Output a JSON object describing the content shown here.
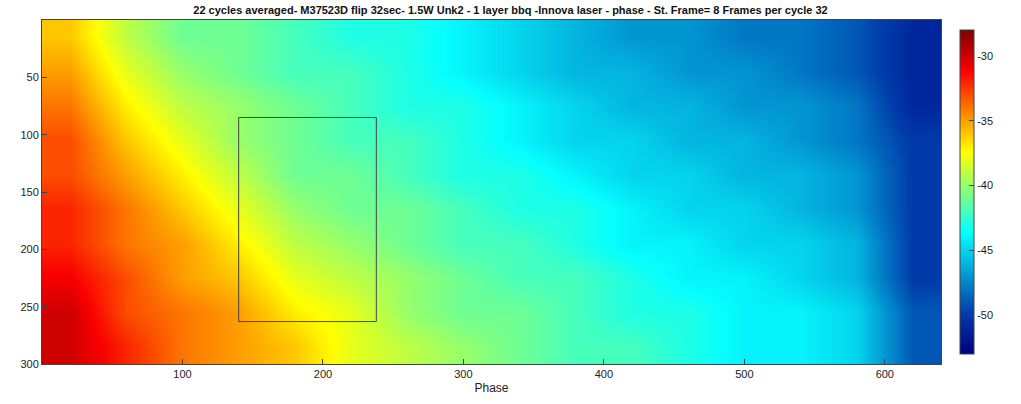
{
  "chart_data": {
    "type": "heatmap",
    "title": "22 cycles averaged- M37523D flip 32sec- 1.5W Unk2 - 1 layer bbq -Innova laser - phase - St. Frame= 8 Frames per cycle 32",
    "x_label": "Phase",
    "x": [
      20,
      60,
      100,
      140,
      180,
      220,
      260,
      300,
      340,
      380,
      420,
      460,
      500,
      540,
      580,
      620
    ],
    "y": [
      15,
      45,
      75,
      105,
      135,
      165,
      195,
      225,
      255,
      285
    ],
    "z": [
      [
        -36,
        -39,
        -41,
        -41,
        -42,
        -43,
        -43,
        -44,
        -45,
        -46,
        -47,
        -47,
        -48,
        -48,
        -49,
        -51
      ],
      [
        -35,
        -38,
        -40,
        -41,
        -42,
        -42,
        -43,
        -44,
        -45,
        -46,
        -46,
        -47,
        -47,
        -48,
        -49,
        -51
      ],
      [
        -34,
        -37,
        -39,
        -40,
        -41,
        -42,
        -43,
        -43,
        -44,
        -45,
        -46,
        -46,
        -47,
        -47,
        -48,
        -51
      ],
      [
        -33,
        -36,
        -38,
        -40,
        -41,
        -42,
        -42,
        -43,
        -44,
        -45,
        -45,
        -46,
        -46,
        -47,
        -48,
        -50
      ],
      [
        -33,
        -35,
        -37,
        -39,
        -41,
        -41,
        -42,
        -43,
        -43,
        -44,
        -45,
        -45,
        -46,
        -46,
        -47,
        -50
      ],
      [
        -32,
        -34,
        -36,
        -38,
        -40,
        -41,
        -41,
        -42,
        -43,
        -43,
        -44,
        -45,
        -45,
        -46,
        -47,
        -50
      ],
      [
        -32,
        -34,
        -35,
        -37,
        -39,
        -40,
        -41,
        -42,
        -42,
        -43,
        -44,
        -44,
        -45,
        -45,
        -46,
        -50
      ],
      [
        -31,
        -33,
        -35,
        -36,
        -38,
        -39,
        -40,
        -41,
        -42,
        -42,
        -43,
        -44,
        -44,
        -45,
        -46,
        -50
      ],
      [
        -30,
        -33,
        -34,
        -35,
        -37,
        -38,
        -40,
        -41,
        -41,
        -42,
        -43,
        -43,
        -44,
        -44,
        -45,
        -49
      ],
      [
        -30,
        -32,
        -34,
        -35,
        -36,
        -38,
        -39,
        -40,
        -41,
        -42,
        -42,
        -43,
        -44,
        -44,
        -45,
        -49
      ]
    ],
    "xlim": [
      0,
      640
    ],
    "ylim": [
      300,
      0
    ],
    "xticks": [
      100,
      200,
      300,
      400,
      500,
      600
    ],
    "yticks": [
      50,
      100,
      150,
      200,
      250,
      300
    ],
    "colorbar_range": [
      -53,
      -28
    ],
    "colorbar_ticks": [
      -50,
      -45,
      -40,
      -35,
      -30
    ],
    "box": {
      "x": [
        140,
        238
      ],
      "y": [
        85,
        263
      ]
    }
  }
}
